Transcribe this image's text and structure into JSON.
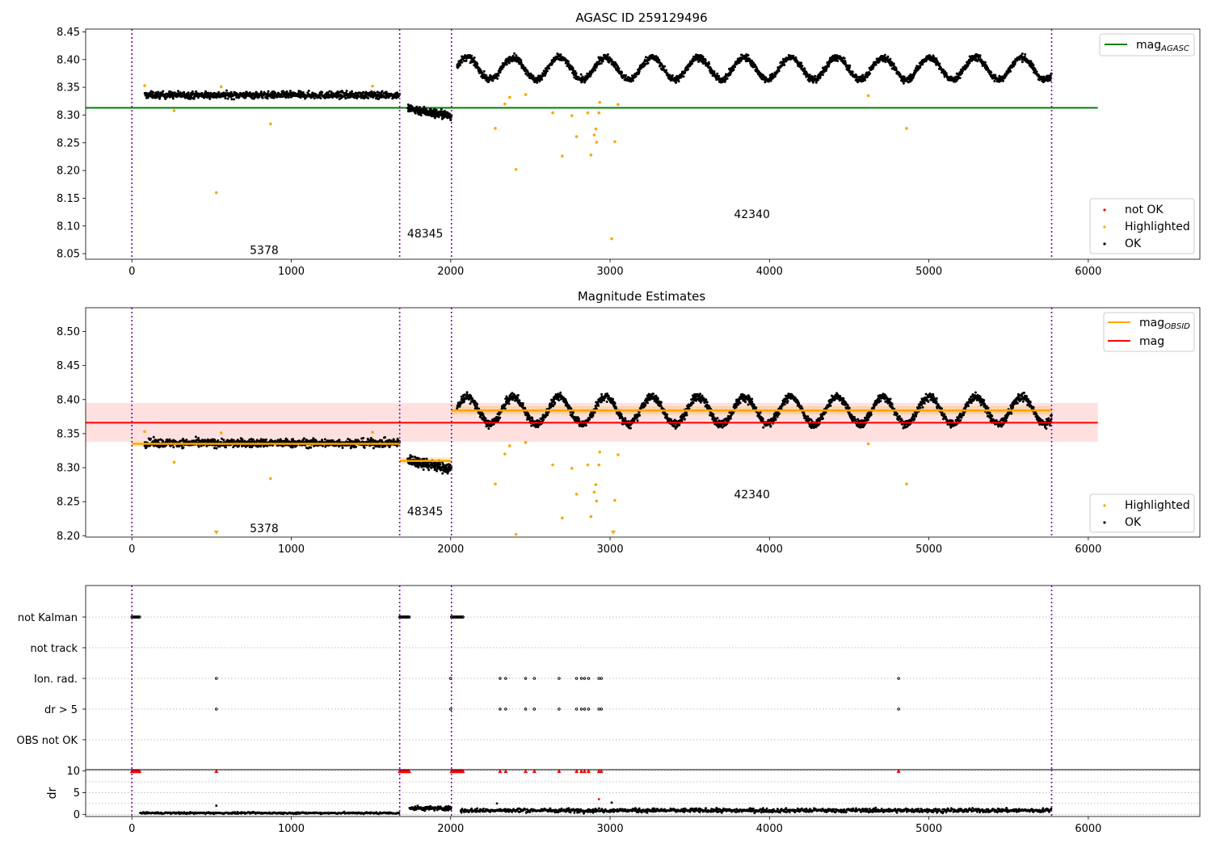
{
  "figure": {
    "title": "AGASC ID 259129496",
    "obsid_boundaries": [
      0,
      1680,
      2005,
      5770
    ],
    "obsid_labels": [
      {
        "text": "5378",
        "x": 830,
        "y_top": 8.055,
        "y_mid": 8.21
      },
      {
        "text": "48345",
        "x": 1840,
        "y_top": 8.085,
        "y_mid": 8.235
      },
      {
        "text": "42340",
        "x": 3890,
        "y_top": 8.12,
        "y_mid": 8.26
      }
    ]
  },
  "chart_data": [
    {
      "type": "scatter",
      "title": "AGASC ID 259129496",
      "xlabel": "",
      "ylabel": "",
      "xlim": [
        -290,
        6700
      ],
      "ylim": [
        8.04,
        8.455
      ],
      "xticks": [
        0,
        1000,
        2000,
        3000,
        4000,
        5000,
        6000
      ],
      "yticks": [
        8.05,
        8.1,
        8.15,
        8.2,
        8.25,
        8.3,
        8.35,
        8.4,
        8.45
      ],
      "ref_line": {
        "name": "mag_AGASC",
        "legend_main": "mag",
        "legend_sub": "AGASC",
        "y": 8.313,
        "x": [
          -290,
          6060
        ],
        "color": "#008000"
      },
      "legend_lines": [
        {
          "label": "mag",
          "sub": "AGASC",
          "color": "#008000"
        }
      ],
      "legend_points": [
        {
          "label": "not OK",
          "color": "#ff0000"
        },
        {
          "label": "Highlighted",
          "color": "#ffa500"
        },
        {
          "label": "OK",
          "color": "#000000"
        }
      ],
      "ok_segments": [
        {
          "x0": 80,
          "x1": 1680,
          "n": 900,
          "waves": [
            [
              8.336,
              0,
              1
            ]
          ],
          "noise": 0.006
        },
        {
          "x0": 1730,
          "x1": 2005,
          "n": 200,
          "waves": [
            [
              8.312,
              0,
              1
            ]
          ],
          "trend": -0.014,
          "noise": 0.008
        },
        {
          "x0": 2040,
          "x1": 5770,
          "n": 2300,
          "waves": [
            [
              8.384,
              0.02,
              290
            ]
          ],
          "noise": 0.006
        }
      ],
      "highlighted": [
        [
          80,
          8.353
        ],
        [
          265,
          8.308
        ],
        [
          530,
          8.16
        ],
        [
          560,
          8.351
        ],
        [
          870,
          8.284
        ],
        [
          1510,
          8.352
        ],
        [
          2280,
          8.276
        ],
        [
          2340,
          8.32
        ],
        [
          2370,
          8.332
        ],
        [
          2410,
          8.202
        ],
        [
          2470,
          8.337
        ],
        [
          2640,
          8.304
        ],
        [
          2700,
          8.226
        ],
        [
          2760,
          8.299
        ],
        [
          2790,
          8.261
        ],
        [
          2860,
          8.304
        ],
        [
          2880,
          8.228
        ],
        [
          2900,
          8.264
        ],
        [
          2910,
          8.275
        ],
        [
          2915,
          8.251
        ],
        [
          2930,
          8.304
        ],
        [
          2935,
          8.323
        ],
        [
          3010,
          8.077
        ],
        [
          3030,
          8.252
        ],
        [
          3050,
          8.319
        ],
        [
          4620,
          8.335
        ],
        [
          4860,
          8.276
        ]
      ],
      "not_ok": []
    },
    {
      "type": "scatter",
      "title": "Magnitude Estimates",
      "xlabel": "",
      "ylabel": "",
      "xlim": [
        -290,
        6700
      ],
      "ylim": [
        8.198,
        8.535
      ],
      "xticks": [
        0,
        1000,
        2000,
        3000,
        4000,
        5000,
        6000
      ],
      "yticks": [
        8.2,
        8.25,
        8.3,
        8.35,
        8.4,
        8.45,
        8.5
      ],
      "mag_line": {
        "name": "mag",
        "y": 8.366,
        "band": [
          8.338,
          8.395
        ],
        "x": [
          -290,
          6060
        ],
        "color": "#ff0000"
      },
      "obsid_mags": [
        {
          "x0": 0,
          "x1": 1680,
          "y": 8.335,
          "band": [
            8.331,
            8.339
          ]
        },
        {
          "x0": 1680,
          "x1": 2005,
          "y": 8.31,
          "band": [
            8.305,
            8.315
          ]
        },
        {
          "x0": 2005,
          "x1": 5770,
          "y": 8.384,
          "band": [
            8.378,
            8.39
          ]
        }
      ],
      "legend_lines": [
        {
          "label": "mag",
          "sub": "OBSID",
          "color": "#ffa500"
        },
        {
          "label": "mag",
          "sub": "",
          "color": "#ff0000"
        }
      ],
      "legend_points": [
        {
          "label": "Highlighted",
          "color": "#ffa500"
        },
        {
          "label": "OK",
          "color": "#000000"
        }
      ],
      "below_range_markers": [
        [
          530,
          8.204
        ],
        [
          3020,
          8.204
        ]
      ]
    },
    {
      "type": "scatter",
      "title": "",
      "xlim": [
        -290,
        6700
      ],
      "categories": [
        "not Kalman",
        "not track",
        "Ion. rad.",
        "dr > 5",
        "OBS not OK"
      ],
      "flags": {
        "not Kalman": [
          [
            0,
            50
          ],
          [
            1680,
            1740
          ],
          [
            2005,
            2080
          ]
        ],
        "not track": [],
        "Ion. rad.": [
          530,
          2000,
          2310,
          2345,
          2470,
          2525,
          2680,
          2790,
          2820,
          2840,
          2865,
          2930,
          2945,
          4810
        ],
        "dr > 5": [
          530,
          2000,
          2310,
          2345,
          2470,
          2525,
          2680,
          2790,
          2820,
          2840,
          2865,
          2930,
          2945,
          4810
        ],
        "OBS not OK": []
      }
    },
    {
      "type": "scatter",
      "title": "",
      "xlabel": "",
      "ylabel": "dr",
      "xlim": [
        -290,
        6700
      ],
      "ylim": [
        -0.5,
        10.3
      ],
      "xticks": [
        0,
        1000,
        2000,
        3000,
        4000,
        5000,
        6000
      ],
      "yticks": [
        0,
        5,
        10
      ],
      "dr_segments": [
        {
          "x0": 50,
          "x1": 1680,
          "y": 0.3,
          "noise": 0.2,
          "n": 420
        },
        {
          "x0": 1740,
          "x1": 2005,
          "y": 1.4,
          "noise": 0.5,
          "n": 120
        },
        {
          "x0": 2060,
          "x1": 5770,
          "y": 0.9,
          "noise": 0.45,
          "n": 1200
        }
      ],
      "dr_clipped_red": [
        [
          0,
          50
        ],
        [
          1680,
          1740
        ],
        [
          2005,
          2080
        ],
        [
          530
        ],
        [
          2310
        ],
        [
          2345
        ],
        [
          2470
        ],
        [
          2525
        ],
        [
          2680
        ],
        [
          2790
        ],
        [
          2820
        ],
        [
          2840
        ],
        [
          2865
        ],
        [
          2930
        ],
        [
          2945
        ],
        [
          4810
        ]
      ],
      "dr_extra_points": [
        [
          530,
          2.0
        ],
        [
          2290,
          2.5
        ],
        [
          2930,
          3.5,
          "red"
        ],
        [
          3010,
          2.7
        ]
      ]
    }
  ]
}
